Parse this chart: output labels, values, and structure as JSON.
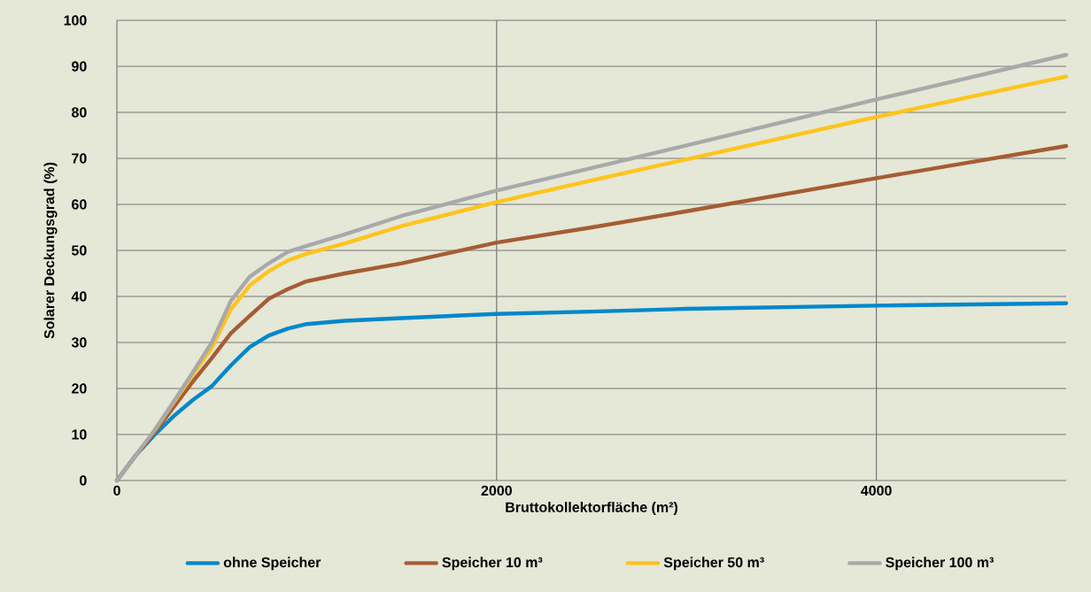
{
  "chart_data": {
    "type": "line",
    "xlabel": "Bruttokollektorfläche (m²)",
    "ylabel": "Solarer Deckungsgrad (%)",
    "x": [
      0,
      100,
      200,
      300,
      400,
      500,
      600,
      700,
      800,
      900,
      1000,
      1200,
      1500,
      2000,
      2500,
      3000,
      4000,
      5000
    ],
    "series": [
      {
        "name": "ohne Speicher",
        "color": "#0088cc",
        "values": [
          0,
          5.5,
          10,
          14,
          17.5,
          20.5,
          25,
          29,
          31.5,
          33,
          34,
          34.7,
          35.3,
          36.2,
          36.7,
          37.3,
          38,
          38.5
        ]
      },
      {
        "name": "Speicher 10 m³",
        "color": "#a65c32",
        "values": [
          0,
          5.5,
          10.5,
          16,
          21.5,
          26.6,
          32,
          35.8,
          39.5,
          41.6,
          43.3,
          45,
          47.2,
          51.7,
          55,
          58.5,
          65.7,
          72.7
        ]
      },
      {
        "name": "Speicher 50 m³",
        "color": "#fec41a",
        "values": [
          null,
          null,
          11,
          17,
          23,
          28.9,
          37.2,
          42.4,
          45.5,
          47.8,
          49.3,
          51.5,
          55.3,
          60.5,
          65.2,
          69.8,
          79,
          87.8
        ]
      },
      {
        "name": "Speicher 100 m³",
        "color": "#a9a9ab",
        "values": [
          0,
          5.5,
          11,
          17.2,
          23.5,
          30,
          39,
          44.3,
          47.2,
          49.7,
          51,
          53.5,
          57.5,
          63,
          67.9,
          72.8,
          82.8,
          92.5
        ]
      }
    ],
    "xlim": [
      0,
      5000
    ],
    "xticks": [
      0,
      2000,
      4000
    ],
    "ylim": [
      0,
      100
    ],
    "yticks": [
      0,
      10,
      20,
      30,
      40,
      50,
      60,
      70,
      80,
      90,
      100
    ],
    "grid": true,
    "legend": "bottom",
    "marker": "none",
    "line_style": "solid"
  }
}
